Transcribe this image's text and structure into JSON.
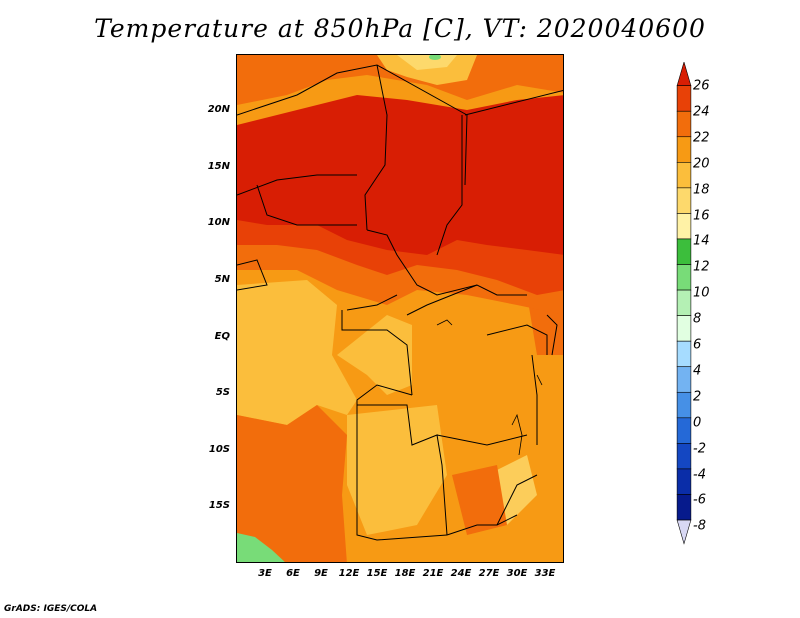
{
  "title": "Temperature at 850hPa [C], VT: 2020040600",
  "credit": "GrADS: IGES/COLA",
  "y_axis_labels": [
    "20N",
    "15N",
    "10N",
    "5N",
    "EQ",
    "5S",
    "10S",
    "15S"
  ],
  "x_axis_labels": [
    "3E",
    "6E",
    "9E",
    "12E",
    "15E",
    "18E",
    "21E",
    "24E",
    "27E",
    "30E",
    "33E"
  ],
  "colorbar": {
    "labels": [
      "26",
      "24",
      "22",
      "20",
      "18",
      "16",
      "14",
      "12",
      "10",
      "8",
      "6",
      "4",
      "2",
      "0",
      "-2",
      "-4",
      "-6",
      "-8"
    ],
    "colors": [
      "#d81e04",
      "#e84107",
      "#f26d0c",
      "#f79a14",
      "#fbbe3c",
      "#fdd96c",
      "#fff2a6",
      "#3cbe3c",
      "#78dc78",
      "#b4f0b4",
      "#e1ffe1",
      "#a6dcff",
      "#73b3f2",
      "#4690e6",
      "#2569d7",
      "#1447c2",
      "#0a2da8",
      "#061a8c",
      "#05106e"
    ],
    "colors_note": "",
    "colors_ends": {
      "top_arrow": "#d81e04",
      "bottom_arrow": "#d8d8f4"
    }
  },
  "map_colors": {
    "c_24_26": "#d81e04",
    "c_22_24": "#e84107",
    "c_20_22": "#f26d0c",
    "c_18_20": "#f79a14",
    "c_16_18": "#fbbe3c",
    "c_14_16": "#fdd96c",
    "c_green": "#78dc78"
  }
}
